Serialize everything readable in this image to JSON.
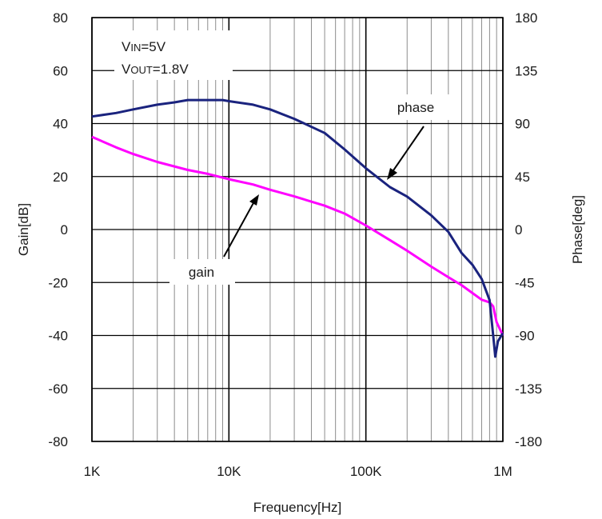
{
  "chart_data": {
    "type": "line",
    "xlabel": "Frequency[Hz]",
    "ylabel_left": "Gain[dB]",
    "ylabel_right": "Phase[deg]",
    "x_scale": "log",
    "xlim": [
      1000,
      1000000
    ],
    "ylim_left": [
      -80,
      80
    ],
    "ylim_right": [
      -180,
      180
    ],
    "x_ticks": [
      {
        "value": 1000,
        "label": "1K"
      },
      {
        "value": 10000,
        "label": "10K"
      },
      {
        "value": 100000,
        "label": "100K"
      },
      {
        "value": 1000000,
        "label": "1M"
      }
    ],
    "y_ticks_left": [
      "80",
      "60",
      "40",
      "20",
      "0",
      "-20",
      "-40",
      "-60",
      "-80"
    ],
    "y_ticks_right": [
      "180",
      "135",
      "90",
      "45",
      "0",
      "-45",
      "-90",
      "-135",
      "-180"
    ],
    "grid": true,
    "conditions": [
      {
        "symbol": "V",
        "subscript": "IN",
        "value": "=5V"
      },
      {
        "symbol": "V",
        "subscript": "OUT",
        "value": "=1.8V"
      }
    ],
    "annotations": [
      {
        "text": "phase",
        "series": "phase",
        "x": 150000,
        "y": 90
      },
      {
        "text": "gain",
        "series": "gain",
        "x": 10000,
        "y": -45
      }
    ],
    "series": [
      {
        "name": "gain",
        "axis": "left",
        "color": "#ff00ff",
        "x": [
          1000,
          1500,
          2000,
          3000,
          5000,
          7000,
          10000,
          15000,
          20000,
          30000,
          50000,
          70000,
          100000,
          150000,
          200000,
          300000,
          400000,
          500000,
          600000,
          700000,
          800000,
          850000,
          900000,
          1000000
        ],
        "y": [
          35,
          31,
          28.5,
          25.5,
          22.5,
          21,
          19,
          17,
          15,
          12.5,
          9,
          6,
          1.5,
          -4,
          -8,
          -14,
          -18,
          -21,
          -24,
          -26.5,
          -27.5,
          -29,
          -35,
          -40
        ]
      },
      {
        "name": "phase",
        "axis": "right",
        "color": "#1a237e",
        "x": [
          1000,
          1500,
          2000,
          3000,
          4000,
          5000,
          7000,
          9000,
          10000,
          15000,
          20000,
          30000,
          50000,
          70000,
          100000,
          150000,
          200000,
          300000,
          400000,
          500000,
          600000,
          700000,
          800000,
          850000,
          880000,
          920000,
          1000000
        ],
        "y": [
          96,
          99,
          102,
          106,
          108,
          110,
          110,
          110,
          109,
          106,
          102,
          94,
          82,
          68,
          52,
          36,
          28,
          12,
          -2,
          -20,
          -30,
          -42,
          -60,
          -90,
          -108,
          -95,
          -88
        ]
      }
    ]
  }
}
